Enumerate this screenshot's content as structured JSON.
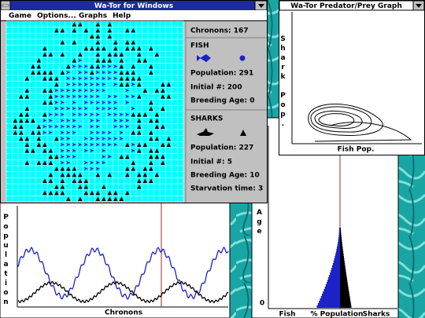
{
  "main_window": {
    "title": "Wa-Tor for Windows",
    "menu": [
      "Game",
      "Options...",
      "Graphs",
      "Help"
    ]
  },
  "stats": {
    "chronons": "Chronons: 167",
    "fish": {
      "heading": "FISH",
      "lines": [
        "Population: 291",
        "Initial #: 200",
        "Breeding Age: 0"
      ]
    },
    "sharks": {
      "heading": "SHARKS",
      "lines": [
        "Population: 227",
        "Initial #: 5",
        "Breeding Age: 10",
        "Starvation time: 3"
      ]
    }
  },
  "phase_graph": {
    "title": "Wa-Tor Predator/Prey Graph",
    "y_label": "Shark Pop.",
    "x_label": "Fish Pop."
  },
  "time_graph": {
    "y_label": "Population",
    "x_label": "Chronons"
  },
  "age_graph": {
    "y_label": "Age",
    "zero_label": "0",
    "x_labels": [
      "Fish",
      "% Population",
      "Sharks"
    ]
  }
}
